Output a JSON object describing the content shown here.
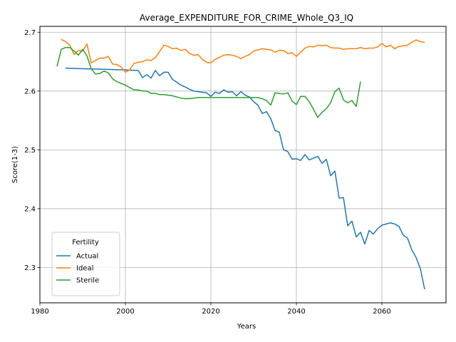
{
  "chart_data": {
    "type": "line",
    "title": "Average_EXPENDITURE_FOR_CRIME_Whole_Q3_IQ",
    "xlabel": "Years",
    "ylabel": "Score(1-3)",
    "xlim": [
      1980,
      2075
    ],
    "ylim": [
      2.24,
      2.71
    ],
    "xticks": [
      1980,
      2000,
      2020,
      2040,
      2060
    ],
    "yticks": [
      2.3,
      2.4,
      2.5,
      2.6,
      2.7
    ],
    "grid": true,
    "legend": {
      "title": "Fertility",
      "placement": "lower-left"
    },
    "series": [
      {
        "name": "Actual",
        "color": "#1f77b4",
        "x": [
          1986,
          1990,
          1995,
          2000,
          2003,
          2004,
          2005,
          2006,
          2007,
          2008,
          2009,
          2010,
          2011,
          2012,
          2013,
          2014,
          2015,
          2016,
          2017,
          2018,
          2019,
          2020,
          2021,
          2022,
          2023,
          2024,
          2025,
          2026,
          2027,
          2028,
          2029,
          2030,
          2031,
          2032,
          2033,
          2034,
          2035,
          2036,
          2037,
          2038,
          2039,
          2040,
          2041,
          2042,
          2043,
          2044,
          2045,
          2046,
          2047,
          2048,
          2049,
          2050,
          2051,
          2052,
          2053,
          2054,
          2055,
          2056,
          2057,
          2058,
          2059,
          2060,
          2061,
          2062,
          2063,
          2064,
          2065,
          2066,
          2067,
          2068,
          2069,
          2070
        ],
        "values": [
          2.639,
          2.638,
          2.637,
          2.636,
          2.635,
          2.623,
          2.628,
          2.622,
          2.635,
          2.626,
          2.632,
          2.632,
          2.62,
          2.615,
          2.61,
          2.607,
          2.603,
          2.6,
          2.599,
          2.598,
          2.597,
          2.591,
          2.598,
          2.596,
          2.602,
          2.598,
          2.599,
          2.592,
          2.599,
          2.593,
          2.59,
          2.582,
          2.576,
          2.562,
          2.565,
          2.553,
          2.533,
          2.53,
          2.5,
          2.497,
          2.484,
          2.485,
          2.482,
          2.492,
          2.483,
          2.486,
          2.489,
          2.477,
          2.484,
          2.456,
          2.464,
          2.418,
          2.419,
          2.371,
          2.379,
          2.352,
          2.36,
          2.34,
          2.363,
          2.357,
          2.366,
          2.372,
          2.374,
          2.376,
          2.374,
          2.37,
          2.355,
          2.35,
          2.33,
          2.317,
          2.298,
          2.263
        ]
      },
      {
        "name": "Ideal",
        "color": "#ff7f0e",
        "x": [
          1985,
          1986,
          1987,
          1988,
          1989,
          1990,
          1991,
          1992,
          1993,
          1994,
          1995,
          1996,
          1997,
          1998,
          1999,
          2000,
          2001,
          2002,
          2003,
          2004,
          2005,
          2006,
          2007,
          2008,
          2009,
          2010,
          2011,
          2012,
          2013,
          2014,
          2015,
          2016,
          2017,
          2018,
          2019,
          2020,
          2021,
          2022,
          2023,
          2024,
          2025,
          2026,
          2027,
          2028,
          2029,
          2030,
          2031,
          2032,
          2033,
          2034,
          2035,
          2036,
          2037,
          2038,
          2039,
          2040,
          2041,
          2042,
          2043,
          2044,
          2045,
          2046,
          2047,
          2048,
          2049,
          2050,
          2051,
          2052,
          2053,
          2054,
          2055,
          2056,
          2057,
          2058,
          2059,
          2060,
          2061,
          2062,
          2063,
          2064,
          2065,
          2066,
          2067,
          2068,
          2069,
          2070
        ],
        "values": [
          2.688,
          2.684,
          2.678,
          2.662,
          2.669,
          2.668,
          2.68,
          2.648,
          2.652,
          2.656,
          2.656,
          2.659,
          2.646,
          2.645,
          2.641,
          2.632,
          2.636,
          2.647,
          2.649,
          2.65,
          2.653,
          2.652,
          2.657,
          2.667,
          2.678,
          2.676,
          2.672,
          2.673,
          2.669,
          2.671,
          2.664,
          2.661,
          2.662,
          2.654,
          2.649,
          2.648,
          2.654,
          2.657,
          2.661,
          2.662,
          2.661,
          2.659,
          2.655,
          2.659,
          2.662,
          2.668,
          2.67,
          2.672,
          2.671,
          2.67,
          2.666,
          2.669,
          2.669,
          2.664,
          2.665,
          2.659,
          2.666,
          2.673,
          2.676,
          2.675,
          2.678,
          2.677,
          2.678,
          2.674,
          2.673,
          2.673,
          2.671,
          2.672,
          2.672,
          2.672,
          2.674,
          2.672,
          2.673,
          2.673,
          2.675,
          2.681,
          2.675,
          2.678,
          2.672,
          2.676,
          2.677,
          2.678,
          2.683,
          2.687,
          2.684,
          2.683
        ]
      },
      {
        "name": "Sterile",
        "color": "#2ca02c",
        "x": [
          1984,
          1985,
          1986,
          1987,
          1988,
          1989,
          1990,
          1991,
          1992,
          1993,
          1994,
          1995,
          1996,
          1997,
          1998,
          1999,
          2000,
          2001,
          2002,
          2003,
          2004,
          2005,
          2006,
          2007,
          2008,
          2009,
          2010,
          2011,
          2012,
          2013,
          2014,
          2015,
          2016,
          2017,
          2018,
          2019,
          2020,
          2021,
          2022,
          2023,
          2024,
          2025,
          2026,
          2027,
          2028,
          2029,
          2030,
          2031,
          2032,
          2033,
          2034,
          2035,
          2036,
          2037,
          2038,
          2039,
          2040,
          2041,
          2042,
          2043,
          2044,
          2045,
          2046,
          2047,
          2048,
          2049,
          2050,
          2051,
          2052,
          2053,
          2054,
          2055
        ],
        "values": [
          2.642,
          2.671,
          2.674,
          2.674,
          2.668,
          2.661,
          2.671,
          2.66,
          2.638,
          2.629,
          2.63,
          2.634,
          2.631,
          2.621,
          2.616,
          2.613,
          2.61,
          2.606,
          2.602,
          2.602,
          2.6,
          2.6,
          2.596,
          2.596,
          2.594,
          2.594,
          2.593,
          2.592,
          2.59,
          2.588,
          2.587,
          2.587,
          2.588,
          2.589,
          2.589,
          2.589,
          2.589,
          2.589,
          2.589,
          2.589,
          2.589,
          2.589,
          2.589,
          2.589,
          2.589,
          2.589,
          2.589,
          2.589,
          2.587,
          2.584,
          2.576,
          2.597,
          2.596,
          2.595,
          2.597,
          2.583,
          2.577,
          2.591,
          2.591,
          2.582,
          2.569,
          2.555,
          2.564,
          2.57,
          2.58,
          2.599,
          2.605,
          2.585,
          2.58,
          2.584,
          2.574,
          2.616
        ]
      }
    ]
  }
}
